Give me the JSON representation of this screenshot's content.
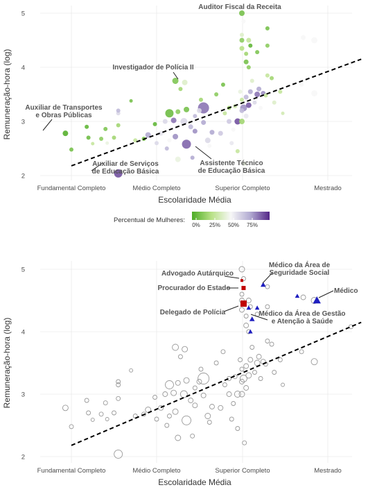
{
  "chart_data": [
    {
      "type": "scatter",
      "title": "",
      "xlabel": "Escolaridade Média",
      "ylabel": "Remuneração-hora (log)",
      "xcategories": [
        "Fundamental Completo",
        "Médio Completo",
        "Superior Completo",
        "Mestrado"
      ],
      "yticks": [
        "2",
        "3",
        "4",
        "5"
      ],
      "ylim": [
        2,
        5
      ],
      "grid": true,
      "trend_line": {
        "style": "dashed",
        "x": [
          1,
          4.4
        ],
        "y": [
          2.18,
          4.15
        ]
      },
      "legend": {
        "title": "Percentual de Mulheres:",
        "position": "bottom",
        "ticks": [
          "0%",
          "25%",
          "50%",
          "75%"
        ],
        "colors": [
          "#4dac26",
          "#b8e186",
          "#f7f7f7",
          "#b2abd2",
          "#542788"
        ]
      },
      "annotations": [
        {
          "label": "Auditor Fiscal da Receita",
          "x": 3.0,
          "y": 5.0
        },
        {
          "label": "Investigador de Polícia II",
          "x": 2.22,
          "y": 3.75
        },
        {
          "label": "Auxiliar de Transportes\ne Obras Públicas",
          "x": 0.93,
          "y": 2.78
        },
        {
          "label": "Auxiliar de Serviços\nde Educação Básica",
          "x": 1.55,
          "y": 2.04
        },
        {
          "label": "Assistente Técnico\nde Educação Básica",
          "x": 2.35,
          "y": 2.58
        }
      ],
      "points": [
        {
          "x": 0.93,
          "y": 2.78,
          "size": 4,
          "pct": 0.02
        },
        {
          "x": 1.0,
          "y": 2.48,
          "size": 3,
          "pct": 0.1
        },
        {
          "x": 1.18,
          "y": 2.9,
          "size": 3,
          "pct": 0.05
        },
        {
          "x": 1.2,
          "y": 2.7,
          "size": 3,
          "pct": 0.08
        },
        {
          "x": 1.25,
          "y": 2.59,
          "size": 2.5,
          "pct": 0.3
        },
        {
          "x": 1.35,
          "y": 2.68,
          "size": 3,
          "pct": 0.15
        },
        {
          "x": 1.4,
          "y": 2.86,
          "size": 3,
          "pct": 0.12
        },
        {
          "x": 1.42,
          "y": 2.6,
          "size": 2.5,
          "pct": 0.45
        },
        {
          "x": 1.5,
          "y": 2.7,
          "size": 3,
          "pct": 0.2
        },
        {
          "x": 1.55,
          "y": 2.93,
          "size": 3,
          "pct": 0.2
        },
        {
          "x": 1.55,
          "y": 3.15,
          "size": 3,
          "pct": 0.6
        },
        {
          "x": 1.55,
          "y": 3.2,
          "size": 3,
          "pct": 0.7
        },
        {
          "x": 1.55,
          "y": 2.04,
          "size": 6,
          "pct": 0.92
        },
        {
          "x": 1.7,
          "y": 3.38,
          "size": 2.5,
          "pct": 0.1
        },
        {
          "x": 1.75,
          "y": 2.65,
          "size": 3,
          "pct": 0.3
        },
        {
          "x": 1.85,
          "y": 2.68,
          "size": 3,
          "pct": 0.1
        },
        {
          "x": 1.9,
          "y": 2.75,
          "size": 4,
          "pct": 0.75
        },
        {
          "x": 1.98,
          "y": 2.95,
          "size": 3,
          "pct": 0.05
        },
        {
          "x": 2.0,
          "y": 2.6,
          "size": 3,
          "pct": 0.6
        },
        {
          "x": 2.05,
          "y": 2.78,
          "size": 3.5,
          "pct": 0.55
        },
        {
          "x": 2.1,
          "y": 3.0,
          "size": 3.5,
          "pct": 0.6
        },
        {
          "x": 2.12,
          "y": 2.5,
          "size": 3,
          "pct": 0.7
        },
        {
          "x": 2.15,
          "y": 2.65,
          "size": 3,
          "pct": 0.5
        },
        {
          "x": 2.15,
          "y": 3.15,
          "size": 6,
          "pct": 0.08
        },
        {
          "x": 2.2,
          "y": 3.02,
          "size": 4,
          "pct": 0.85
        },
        {
          "x": 2.22,
          "y": 2.72,
          "size": 4,
          "pct": 0.8
        },
        {
          "x": 2.22,
          "y": 3.75,
          "size": 4.5,
          "pct": 0.12
        },
        {
          "x": 2.25,
          "y": 2.3,
          "size": 4,
          "pct": 0.45
        },
        {
          "x": 2.25,
          "y": 3.18,
          "size": 3.5,
          "pct": 0.15
        },
        {
          "x": 2.28,
          "y": 3.6,
          "size": 3,
          "pct": 0.2
        },
        {
          "x": 2.32,
          "y": 3.0,
          "size": 5,
          "pct": 0.6
        },
        {
          "x": 2.33,
          "y": 3.72,
          "size": 4,
          "pct": 0.4
        },
        {
          "x": 2.35,
          "y": 2.58,
          "size": 6.5,
          "pct": 0.88
        },
        {
          "x": 2.35,
          "y": 3.22,
          "size": 4,
          "pct": 0.1
        },
        {
          "x": 2.4,
          "y": 2.9,
          "size": 3.5,
          "pct": 0.7
        },
        {
          "x": 2.42,
          "y": 2.33,
          "size": 3,
          "pct": 0.75
        },
        {
          "x": 2.45,
          "y": 2.82,
          "size": 3.5,
          "pct": 0.8
        },
        {
          "x": 2.45,
          "y": 3.1,
          "size": 3,
          "pct": 0.7
        },
        {
          "x": 2.5,
          "y": 3.2,
          "size": 3.5,
          "pct": 0.6
        },
        {
          "x": 2.52,
          "y": 3.4,
          "size": 3,
          "pct": 0.2
        },
        {
          "x": 2.55,
          "y": 3.25,
          "size": 8,
          "pct": 0.85
        },
        {
          "x": 2.55,
          "y": 2.98,
          "size": 3.5,
          "pct": 0.75
        },
        {
          "x": 2.6,
          "y": 2.65,
          "size": 4,
          "pct": 0.6
        },
        {
          "x": 2.62,
          "y": 2.55,
          "size": 3,
          "pct": 0.5
        },
        {
          "x": 2.65,
          "y": 2.8,
          "size": 3.5,
          "pct": 0.75
        },
        {
          "x": 2.7,
          "y": 3.5,
          "size": 3,
          "pct": 0.15
        },
        {
          "x": 2.75,
          "y": 2.78,
          "size": 3.5,
          "pct": 0.65
        },
        {
          "x": 2.78,
          "y": 3.68,
          "size": 3,
          "pct": 0.1
        },
        {
          "x": 2.8,
          "y": 3.15,
          "size": 3,
          "pct": 0.3
        },
        {
          "x": 2.85,
          "y": 3.0,
          "size": 3.5,
          "pct": 0.65
        },
        {
          "x": 2.85,
          "y": 3.25,
          "size": 3,
          "pct": 0.2
        },
        {
          "x": 2.88,
          "y": 2.6,
          "size": 3,
          "pct": 0.55
        },
        {
          "x": 2.9,
          "y": 2.85,
          "size": 3,
          "pct": 0.5
        },
        {
          "x": 2.92,
          "y": 3.28,
          "size": 3,
          "pct": 0.35
        },
        {
          "x": 2.95,
          "y": 3.0,
          "size": 4.5,
          "pct": 0.92
        },
        {
          "x": 2.95,
          "y": 2.45,
          "size": 3,
          "pct": 0.3
        },
        {
          "x": 2.98,
          "y": 3.55,
          "size": 3,
          "pct": 0.45
        },
        {
          "x": 3.0,
          "y": 3.0,
          "size": 4,
          "pct": 0.2
        },
        {
          "x": 3.0,
          "y": 3.2,
          "size": 3.5,
          "pct": 0.7
        },
        {
          "x": 3.0,
          "y": 3.4,
          "size": 3,
          "pct": 0.3
        },
        {
          "x": 3.0,
          "y": 4.35,
          "size": 3.5,
          "pct": 0.25
        },
        {
          "x": 3.0,
          "y": 4.5,
          "size": 3.5,
          "pct": 0.15
        },
        {
          "x": 3.0,
          "y": 4.6,
          "size": 3,
          "pct": 0.4
        },
        {
          "x": 3.0,
          "y": 5.0,
          "size": 4,
          "pct": 0.1
        },
        {
          "x": 3.02,
          "y": 3.25,
          "size": 5,
          "pct": 0.8
        },
        {
          "x": 3.02,
          "y": 4.85,
          "size": 3,
          "pct": 0.5
        },
        {
          "x": 3.03,
          "y": 2.22,
          "size": 3,
          "pct": 0.45
        },
        {
          "x": 3.05,
          "y": 3.1,
          "size": 3.5,
          "pct": 0.55
        },
        {
          "x": 3.05,
          "y": 3.45,
          "size": 3.5,
          "pct": 0.7
        },
        {
          "x": 3.05,
          "y": 4.1,
          "size": 3.5,
          "pct": 0.1
        },
        {
          "x": 3.05,
          "y": 4.25,
          "size": 3,
          "pct": 0.2
        },
        {
          "x": 3.08,
          "y": 3.3,
          "size": 4,
          "pct": 0.9
        },
        {
          "x": 3.08,
          "y": 4.0,
          "size": 3,
          "pct": 0.15
        },
        {
          "x": 3.08,
          "y": 4.5,
          "size": 3.5,
          "pct": 0.3
        },
        {
          "x": 3.1,
          "y": 3.55,
          "size": 3.5,
          "pct": 0.75
        },
        {
          "x": 3.1,
          "y": 4.4,
          "size": 3,
          "pct": 0.05
        },
        {
          "x": 3.12,
          "y": 3.75,
          "size": 3,
          "pct": 0.4
        },
        {
          "x": 3.15,
          "y": 3.35,
          "size": 3,
          "pct": 0.6
        },
        {
          "x": 3.18,
          "y": 3.5,
          "size": 4,
          "pct": 0.85
        },
        {
          "x": 3.18,
          "y": 4.28,
          "size": 3,
          "pct": 0.12
        },
        {
          "x": 3.2,
          "y": 3.6,
          "size": 3.5,
          "pct": 0.75
        },
        {
          "x": 3.22,
          "y": 3.25,
          "size": 3,
          "pct": 0.5
        },
        {
          "x": 3.25,
          "y": 3.52,
          "size": 3.5,
          "pct": 0.8
        },
        {
          "x": 3.28,
          "y": 3.48,
          "size": 3,
          "pct": 0.3
        },
        {
          "x": 3.3,
          "y": 4.4,
          "size": 3,
          "pct": 0.15
        },
        {
          "x": 3.3,
          "y": 3.85,
          "size": 3,
          "pct": 0.3
        },
        {
          "x": 3.3,
          "y": 4.72,
          "size": 3,
          "pct": 0.1
        },
        {
          "x": 3.35,
          "y": 3.8,
          "size": 3,
          "pct": 0.2
        },
        {
          "x": 3.38,
          "y": 3.35,
          "size": 3,
          "pct": 0.4
        },
        {
          "x": 3.45,
          "y": 3.55,
          "size": 3,
          "pct": 0.3
        },
        {
          "x": 3.48,
          "y": 3.15,
          "size": 2.5,
          "pct": 0.35
        },
        {
          "x": 3.7,
          "y": 3.68,
          "size": 3,
          "pct": 0.5
        },
        {
          "x": 3.72,
          "y": 4.55,
          "size": 3.5,
          "pct": 0.5
        },
        {
          "x": 3.85,
          "y": 4.5,
          "size": 4.5,
          "pct": 0.5
        },
        {
          "x": 3.85,
          "y": 3.52,
          "size": 4.5,
          "pct": 0.5
        },
        {
          "x": 4.28,
          "y": 4.08,
          "size": 3,
          "pct": 0.5
        }
      ]
    },
    {
      "type": "scatter",
      "title": "",
      "xlabel": "Escolaridade Média",
      "ylabel": "Remuneração-hora (log)",
      "xcategories": [
        "Fundamental Completo",
        "Médio Completo",
        "Superior Completo",
        "Mestrado"
      ],
      "yticks": [
        "2",
        "3",
        "4",
        "5"
      ],
      "ylim": [
        2,
        5
      ],
      "grid": true,
      "trend_line": {
        "style": "dashed",
        "x": [
          1,
          4.4
        ],
        "y": [
          2.18,
          4.15
        ]
      },
      "highlight_colors": {
        "red": "#c00000",
        "blue": "#1f1fbf",
        "grey": "#999999"
      },
      "highlights": [
        {
          "label": "Advogado Autárquico",
          "x": 3.0,
          "y": 4.82,
          "marker": "square",
          "color": "red",
          "size": 2
        },
        {
          "label": "Procurador do Estado",
          "x": 3.02,
          "y": 4.7,
          "marker": "square",
          "color": "red",
          "size": 3
        },
        {
          "label": "Delegado de Polícia",
          "x": 3.02,
          "y": 4.45,
          "marker": "square",
          "color": "red",
          "size": 4.5
        },
        {
          "label": "Médico da Área de\nSeguridade Social",
          "x": 3.25,
          "y": 4.75,
          "marker": "triangle",
          "color": "blue",
          "size": 4
        },
        {
          "label": "Médico",
          "x": 3.88,
          "y": 4.5,
          "marker": "triangle",
          "color": "blue",
          "size": 6
        },
        {
          "label": "Médico da Área de Gestão\ne Atenção à Saúde",
          "x": 3.12,
          "y": 4.2,
          "marker": "triangle",
          "color": "blue",
          "size": 4
        }
      ],
      "extra_triangles": [
        {
          "x": 3.08,
          "y": 4.38
        },
        {
          "x": 3.18,
          "y": 4.38
        },
        {
          "x": 3.1,
          "y": 4.0
        },
        {
          "x": 3.65,
          "y": 4.57
        }
      ]
    }
  ]
}
